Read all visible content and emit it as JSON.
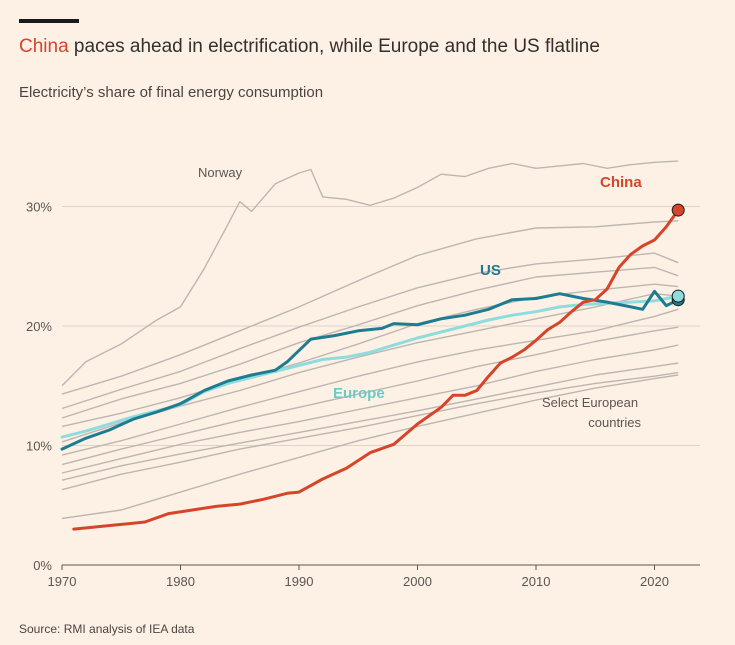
{
  "header": {
    "title_highlight": "China",
    "title_rest": " paces ahead in electrification, while Europe and the US flatline",
    "subtitle": "Electricity’s share of final energy consumption"
  },
  "source": "Source: RMI analysis of IEA data",
  "colors": {
    "china": "#d6442a",
    "us": "#1d7c91",
    "europe": "#8fdcde",
    "countries": "#bdb6b0",
    "grid": "#ddd4ca",
    "background": "#fdf1e6"
  },
  "annotations": {
    "norway": "Norway",
    "china": "China",
    "us": "US",
    "europe": "Europe",
    "select_line1": "Select European",
    "select_line2": "countries"
  },
  "chart_data": {
    "type": "line",
    "title": "China paces ahead in electrification, while Europe and the US flatline",
    "subtitle": "Electricity’s share of final energy consumption",
    "xlim": [
      1970,
      2023
    ],
    "ylim": [
      0,
      34
    ],
    "x_ticks": [
      1970,
      1980,
      1990,
      2000,
      2010,
      2020
    ],
    "y_ticks": [
      0,
      10,
      20,
      30
    ],
    "y_tick_labels": [
      "0%",
      "10%",
      "20%",
      "30%"
    ],
    "grid": "horizontal",
    "series": [
      {
        "name": "China",
        "role": "highlight",
        "color": "#d6442a",
        "endpoint_marker": true,
        "x": [
          1971,
          1973,
          1975,
          1977,
          1979,
          1981,
          1983,
          1985,
          1987,
          1989,
          1990,
          1992,
          1994,
          1996,
          1998,
          2000,
          2002,
          2003,
          2004,
          2005,
          2006,
          2007,
          2008,
          2009,
          2010,
          2011,
          2012,
          2013,
          2014,
          2015,
          2016,
          2017,
          2018,
          2019,
          2020,
          2021,
          2022
        ],
        "y": [
          3.0,
          3.2,
          3.4,
          3.6,
          4.3,
          4.6,
          4.9,
          5.1,
          5.5,
          6.0,
          6.1,
          7.2,
          8.1,
          9.4,
          10.1,
          11.8,
          13.2,
          14.2,
          14.2,
          14.6,
          15.8,
          16.9,
          17.4,
          18.0,
          18.8,
          19.7,
          20.3,
          21.2,
          22.0,
          22.2,
          23.1,
          24.9,
          26.0,
          26.7,
          27.2,
          28.3,
          29.7
        ]
      },
      {
        "name": "US",
        "role": "highlight",
        "color": "#1d7c91",
        "endpoint_marker": true,
        "x": [
          1970,
          1972,
          1974,
          1976,
          1978,
          1980,
          1982,
          1984,
          1986,
          1988,
          1989,
          1991,
          1993,
          1995,
          1997,
          1998,
          2000,
          2002,
          2004,
          2006,
          2008,
          2010,
          2012,
          2014,
          2016,
          2018,
          2019,
          2020,
          2021,
          2022
        ],
        "y": [
          9.7,
          10.6,
          11.3,
          12.2,
          12.8,
          13.5,
          14.6,
          15.4,
          15.9,
          16.3,
          17.0,
          18.9,
          19.2,
          19.6,
          19.8,
          20.2,
          20.1,
          20.6,
          20.9,
          21.4,
          22.2,
          22.3,
          22.7,
          22.3,
          22.0,
          21.6,
          21.4,
          22.9,
          21.7,
          22.2
        ]
      },
      {
        "name": "Europe",
        "role": "highlight",
        "color": "#8fdcde",
        "endpoint_marker": true,
        "x": [
          1970,
          1972,
          1974,
          1976,
          1978,
          1980,
          1982,
          1984,
          1986,
          1988,
          1990,
          1992,
          1994,
          1996,
          1998,
          2000,
          2002,
          2004,
          2006,
          2008,
          2010,
          2012,
          2014,
          2016,
          2018,
          2020,
          2022
        ],
        "y": [
          10.7,
          11.2,
          11.8,
          12.4,
          12.9,
          13.4,
          14.5,
          15.2,
          15.7,
          16.2,
          16.7,
          17.2,
          17.4,
          17.8,
          18.4,
          19.0,
          19.5,
          20.0,
          20.5,
          20.9,
          21.2,
          21.6,
          21.8,
          21.9,
          22.0,
          22.1,
          22.5
        ]
      },
      {
        "name": "Norway",
        "role": "context",
        "color": "#bdb6b0",
        "x": [
          1970,
          1972,
          1975,
          1978,
          1980,
          1982,
          1984,
          1985,
          1986,
          1988,
          1990,
          1991,
          1992,
          1994,
          1996,
          1998,
          2000,
          2002,
          2004,
          2006,
          2008,
          2010,
          2012,
          2014,
          2016,
          2018,
          2020,
          2022
        ],
        "y": [
          15.0,
          17.0,
          18.5,
          20.5,
          21.6,
          24.8,
          28.5,
          30.4,
          29.6,
          31.9,
          32.8,
          33.1,
          30.8,
          30.6,
          30.1,
          30.7,
          31.6,
          32.7,
          32.5,
          33.2,
          33.6,
          33.2,
          33.4,
          33.6,
          33.2,
          33.5,
          33.7,
          33.8
        ]
      },
      {
        "name": "",
        "role": "context",
        "color": "#bdb6b0",
        "x": [
          1970,
          1975,
          1980,
          1985,
          1990,
          1995,
          2000,
          2005,
          2010,
          2015,
          2020,
          2022
        ],
        "y": [
          14.3,
          15.8,
          17.6,
          19.6,
          21.6,
          23.8,
          25.9,
          27.3,
          28.2,
          28.3,
          28.7,
          28.8
        ]
      },
      {
        "name": "",
        "role": "context",
        "color": "#bdb6b0",
        "x": [
          1970,
          1975,
          1980,
          1985,
          1990,
          1995,
          2000,
          2005,
          2010,
          2015,
          2020,
          2022
        ],
        "y": [
          13.1,
          14.7,
          16.2,
          18.1,
          19.9,
          21.6,
          23.2,
          24.4,
          25.2,
          25.6,
          26.1,
          25.3
        ]
      },
      {
        "name": "",
        "role": "context",
        "color": "#bdb6b0",
        "x": [
          1970,
          1975,
          1980,
          1985,
          1990,
          1995,
          2000,
          2005,
          2010,
          2015,
          2020,
          2022
        ],
        "y": [
          12.3,
          13.9,
          15.2,
          16.8,
          18.6,
          20.1,
          21.7,
          23.0,
          24.1,
          24.5,
          24.9,
          24.2
        ]
      },
      {
        "name": "",
        "role": "context",
        "color": "#bdb6b0",
        "x": [
          1970,
          1975,
          1980,
          1985,
          1990,
          1995,
          2000,
          2005,
          2010,
          2015,
          2020,
          2022
        ],
        "y": [
          11.6,
          12.7,
          14.0,
          15.5,
          16.9,
          18.5,
          20.2,
          21.4,
          22.4,
          23.0,
          23.5,
          23.3
        ]
      },
      {
        "name": "",
        "role": "context",
        "color": "#bdb6b0",
        "x": [
          1970,
          1975,
          1980,
          1985,
          1990,
          1995,
          2000,
          2005,
          2010,
          2015,
          2020,
          2022
        ],
        "y": [
          10.3,
          11.9,
          13.3,
          14.6,
          16.1,
          17.4,
          18.6,
          19.6,
          20.6,
          21.6,
          22.7,
          22.5
        ]
      },
      {
        "name": "",
        "role": "context",
        "color": "#bdb6b0",
        "x": [
          1970,
          1975,
          1980,
          1985,
          1990,
          1995,
          2000,
          2005,
          2010,
          2015,
          2020,
          2022
        ],
        "y": [
          9.2,
          10.4,
          11.8,
          13.2,
          14.5,
          15.8,
          17.0,
          18.0,
          18.8,
          19.6,
          20.8,
          21.4
        ]
      },
      {
        "name": "",
        "role": "context",
        "color": "#bdb6b0",
        "x": [
          1970,
          1975,
          1980,
          1985,
          1990,
          1995,
          2000,
          2005,
          2010,
          2015,
          2020,
          2022
        ],
        "y": [
          8.4,
          9.7,
          10.9,
          12.1,
          13.2,
          14.3,
          15.4,
          16.6,
          17.6,
          18.7,
          19.6,
          19.9
        ]
      },
      {
        "name": "",
        "role": "context",
        "color": "#bdb6b0",
        "x": [
          1970,
          1975,
          1980,
          1985,
          1990,
          1995,
          2000,
          2005,
          2010,
          2015,
          2020,
          2022
        ],
        "y": [
          7.7,
          8.9,
          10.1,
          11.1,
          12.0,
          13.0,
          14.0,
          15.0,
          16.2,
          17.2,
          18.0,
          18.4
        ]
      },
      {
        "name": "",
        "role": "context",
        "color": "#bdb6b0",
        "x": [
          1970,
          1975,
          1980,
          1985,
          1990,
          1995,
          2000,
          2005,
          2010,
          2015,
          2020,
          2022
        ],
        "y": [
          7.1,
          8.3,
          9.3,
          10.2,
          11.1,
          12.0,
          12.9,
          13.9,
          14.9,
          15.9,
          16.6,
          16.9
        ]
      },
      {
        "name": "",
        "role": "context",
        "color": "#bdb6b0",
        "x": [
          1970,
          1975,
          1980,
          1985,
          1990,
          1995,
          2000,
          2005,
          2010,
          2015,
          2020,
          2022
        ],
        "y": [
          6.3,
          7.6,
          8.6,
          9.7,
          10.6,
          11.5,
          12.5,
          13.5,
          14.4,
          15.2,
          15.8,
          16.1
        ]
      },
      {
        "name": "",
        "role": "context",
        "color": "#bdb6b0",
        "x": [
          1970,
          1975,
          1980,
          1985,
          1990,
          1995,
          2000,
          2005,
          2010,
          2015,
          2020,
          2022
        ],
        "y": [
          3.9,
          4.6,
          6.1,
          7.6,
          9.0,
          10.4,
          11.6,
          12.7,
          13.8,
          14.8,
          15.6,
          15.9
        ]
      }
    ]
  }
}
